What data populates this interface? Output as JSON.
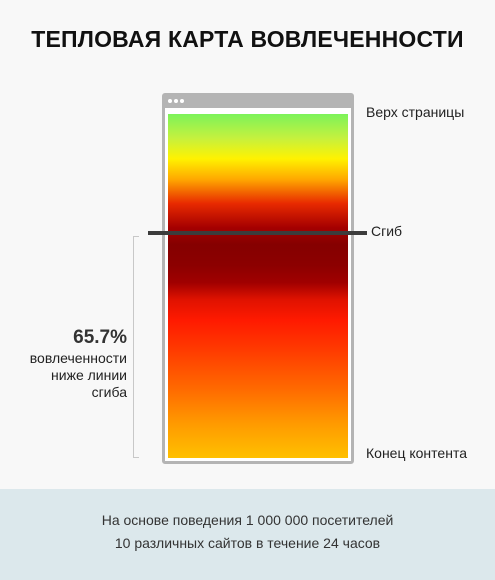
{
  "title": "ТЕПЛОВАЯ КАРТА ВОВЛЕЧЕННОСТИ",
  "labels": {
    "top": "Верх страницы",
    "fold": "Сгиб",
    "end": "Конец контента"
  },
  "stat": {
    "value": "65.7%",
    "lines": [
      "вовлеченности",
      "ниже линии",
      "сгиба"
    ]
  },
  "footer": {
    "line1": "На основе поведения 1 000 000 посетителей",
    "line2": "10 различных сайтов в течение 24 часов"
  },
  "colors": {
    "fold_line": "#3c3c3c",
    "footer_bg": "#dce8ec",
    "browser_frame": "#b4b4b4"
  }
}
